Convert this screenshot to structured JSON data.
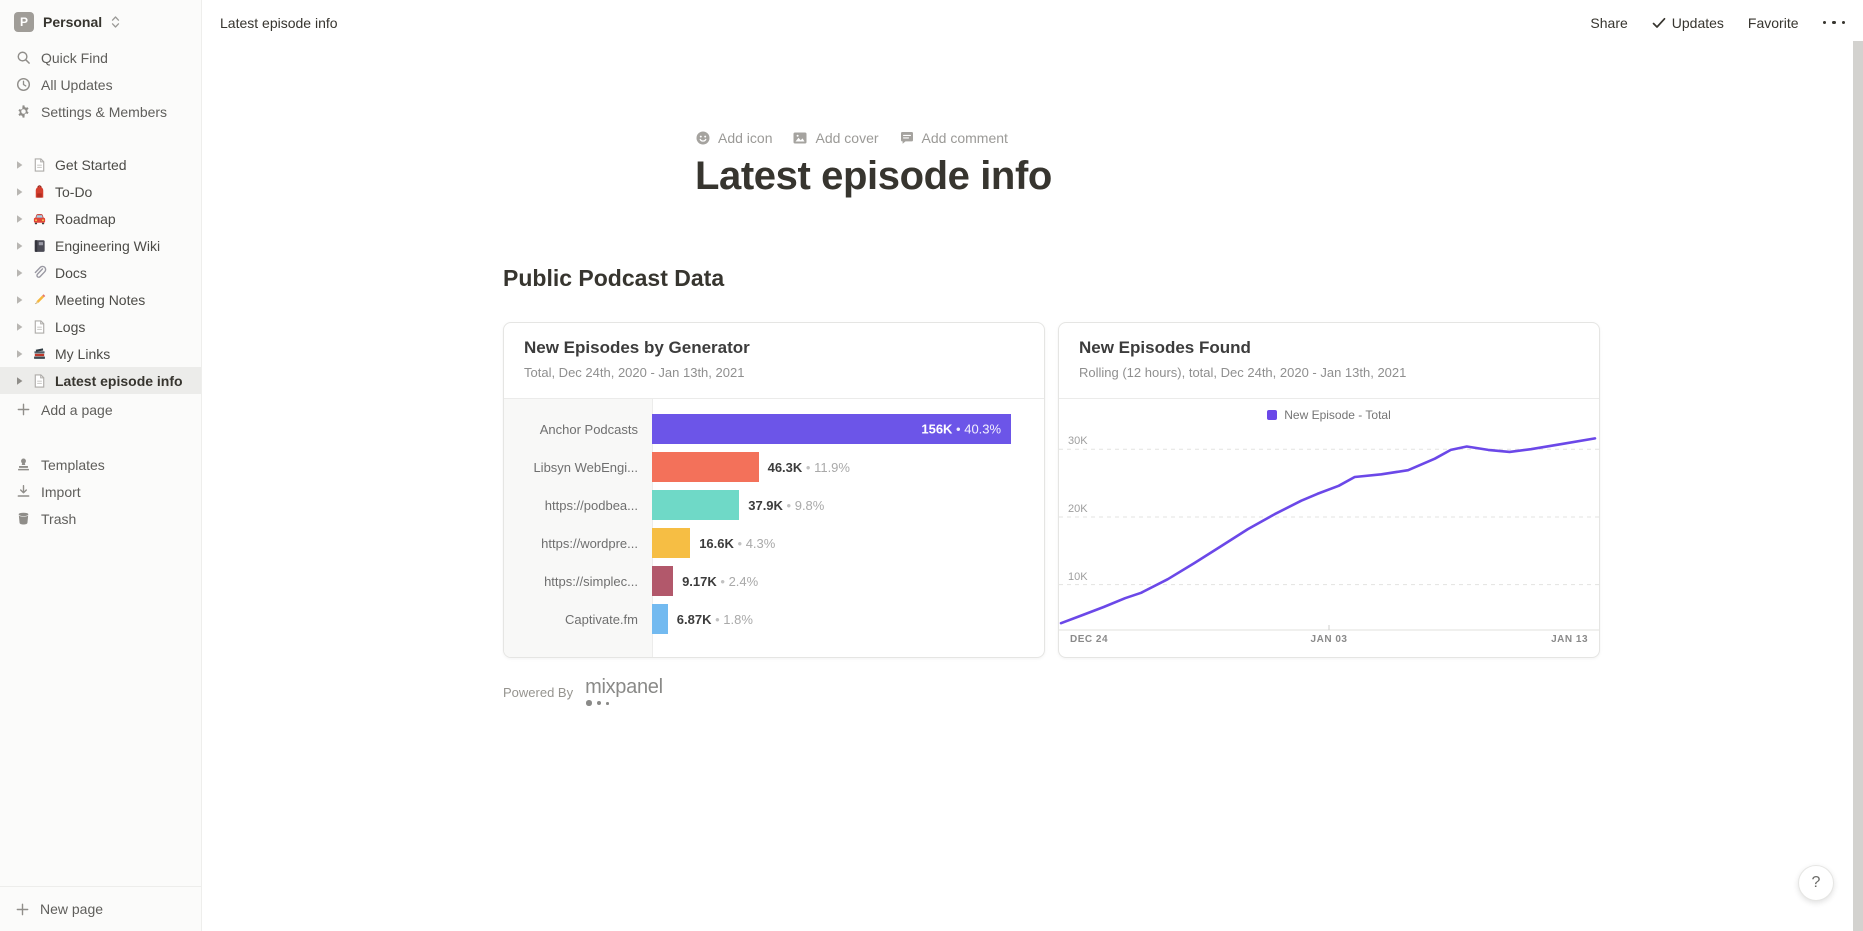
{
  "sidebar": {
    "workspace": {
      "initial": "P",
      "name": "Personal"
    },
    "top_items": [
      {
        "icon": "search-icon",
        "label": "Quick Find"
      },
      {
        "icon": "clock-icon",
        "label": "All Updates"
      },
      {
        "icon": "gear-icon",
        "label": "Settings & Members"
      }
    ],
    "pages": [
      {
        "icon": "document-icon",
        "label": "Get Started"
      },
      {
        "icon": "backpack-emoji",
        "label": "To-Do"
      },
      {
        "icon": "car-emoji",
        "label": "Roadmap"
      },
      {
        "icon": "notebook-emoji",
        "label": "Engineering Wiki"
      },
      {
        "icon": "paperclip-emoji",
        "label": "Docs"
      },
      {
        "icon": "pencil-emoji",
        "label": "Meeting Notes"
      },
      {
        "icon": "document-icon",
        "label": "Logs"
      },
      {
        "icon": "books-emoji",
        "label": "My Links"
      },
      {
        "icon": "document-icon",
        "label": "Latest episode info",
        "selected": true
      }
    ],
    "add_page_label": "Add a page",
    "bottom_items": [
      {
        "icon": "templates-icon",
        "label": "Templates"
      },
      {
        "icon": "import-icon",
        "label": "Import"
      },
      {
        "icon": "trash-icon",
        "label": "Trash"
      }
    ],
    "new_page_label": "New page"
  },
  "topbar": {
    "breadcrumb": "Latest episode info",
    "share_label": "Share",
    "updates_label": "Updates",
    "favorite_label": "Favorite"
  },
  "page": {
    "add_icon_label": "Add icon",
    "add_cover_label": "Add cover",
    "add_comment_label": "Add comment",
    "title": "Latest episode info",
    "heading": "Public Podcast Data",
    "powered_by_label": "Powered By",
    "mixpanel_wordmark": "mixpanel"
  },
  "chart_data": [
    {
      "type": "bar",
      "orientation": "horizontal",
      "title": "New Episodes by Generator",
      "subtitle": "Total, Dec 24th, 2020 - Jan 13th, 2021",
      "categories": [
        "Anchor Podcasts",
        "Libsyn WebEngi...",
        "https://podbea...",
        "https://wordpre...",
        "https://simplec...",
        "Captivate.fm"
      ],
      "values": [
        156000,
        46300,
        37900,
        16600,
        9170,
        6870
      ],
      "value_labels": [
        "156K",
        "46.3K",
        "37.9K",
        "16.6K",
        "9.17K",
        "6.87K"
      ],
      "percent_labels": [
        "40.3%",
        "11.9%",
        "9.8%",
        "4.3%",
        "2.4%",
        "1.8%"
      ],
      "colors": [
        "#6C55E8",
        "#F3715A",
        "#6FD9C7",
        "#F6BE44",
        "#B2586B",
        "#73BAF0"
      ],
      "separator": "•"
    },
    {
      "type": "line",
      "title": "New Episodes Found",
      "subtitle": "Rolling (12 hours), total, Dec 24th, 2020 - Jan 13th, 2021",
      "legend_position": "top-center",
      "grid": "dashed-horizontal",
      "ylim": [
        0,
        35000
      ],
      "y_ticks": [
        10000,
        20000,
        30000
      ],
      "y_tick_labels": [
        "10K",
        "20K",
        "30K"
      ],
      "x_tick_labels": [
        "DEC 24",
        "JAN 03",
        "JAN 13"
      ],
      "series": [
        {
          "name": "New Episode - Total",
          "color": "#6B48E8",
          "x_frac": [
            0,
            0.04,
            0.08,
            0.12,
            0.15,
            0.2,
            0.25,
            0.3,
            0.35,
            0.4,
            0.45,
            0.48,
            0.52,
            0.55,
            0.6,
            0.65,
            0.7,
            0.73,
            0.76,
            0.8,
            0.84,
            0.88,
            0.94,
            1.0
          ],
          "values": [
            4300,
            5500,
            6700,
            8000,
            8800,
            10800,
            13200,
            15700,
            18200,
            20400,
            22400,
            23400,
            24600,
            25900,
            26300,
            26900,
            28600,
            29900,
            30400,
            29900,
            29600,
            30000,
            30800,
            31600
          ]
        }
      ]
    }
  ],
  "help_button_label": "?"
}
